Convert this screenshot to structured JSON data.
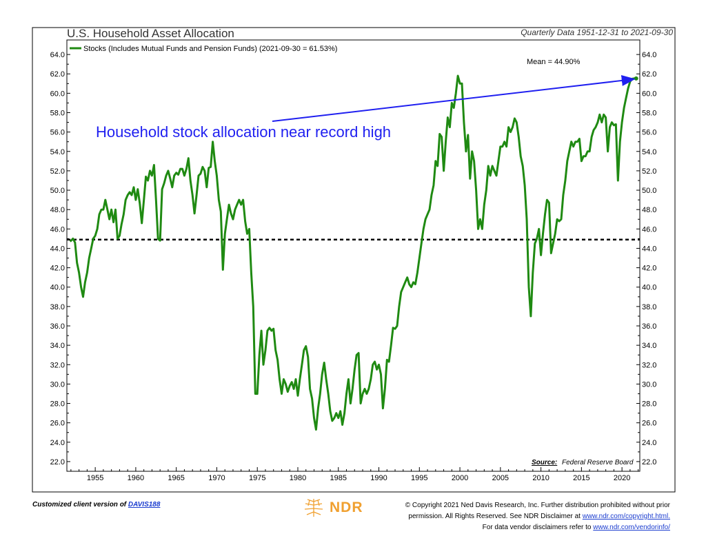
{
  "chart_data": {
    "type": "line",
    "title": "U.S. Household Asset Allocation",
    "subtitle": "Quarterly Data 1951-12-31 to 2021-09-30",
    "series": [
      {
        "name": "Stocks (Includes Mutual Funds and Pension Funds) (2021-09-30 = 61.53%)",
        "color": "#1f8a12",
        "points": [
          [
            1951.9,
            44.7
          ],
          [
            1952.25,
            45.0
          ],
          [
            1952.5,
            44.6
          ],
          [
            1952.75,
            42.5
          ],
          [
            1953.0,
            41.5
          ],
          [
            1953.25,
            40.0
          ],
          [
            1953.5,
            39.0
          ],
          [
            1953.75,
            40.5
          ],
          [
            1954.0,
            41.5
          ],
          [
            1954.25,
            43.0
          ],
          [
            1954.5,
            44.0
          ],
          [
            1954.75,
            45.0
          ],
          [
            1955.0,
            45.3
          ],
          [
            1955.25,
            46.0
          ],
          [
            1955.5,
            47.5
          ],
          [
            1955.75,
            48.0
          ],
          [
            1956.0,
            48.0
          ],
          [
            1956.25,
            49.0
          ],
          [
            1956.5,
            48.0
          ],
          [
            1956.75,
            47.0
          ],
          [
            1957.0,
            48.0
          ],
          [
            1957.25,
            46.7
          ],
          [
            1957.5,
            48.0
          ],
          [
            1957.75,
            45.0
          ],
          [
            1958.0,
            45.3
          ],
          [
            1958.25,
            46.5
          ],
          [
            1958.5,
            47.5
          ],
          [
            1958.75,
            49.0
          ],
          [
            1959.0,
            49.5
          ],
          [
            1959.25,
            49.8
          ],
          [
            1959.5,
            49.5
          ],
          [
            1959.75,
            50.3
          ],
          [
            1960.0,
            49.0
          ],
          [
            1960.25,
            50.1
          ],
          [
            1960.5,
            48.6
          ],
          [
            1960.75,
            46.6
          ],
          [
            1961.0,
            49.0
          ],
          [
            1961.25,
            51.4
          ],
          [
            1961.5,
            51.0
          ],
          [
            1961.75,
            52.0
          ],
          [
            1962.0,
            51.5
          ],
          [
            1962.25,
            52.6
          ],
          [
            1962.5,
            49.0
          ],
          [
            1962.75,
            45.0
          ],
          [
            1963.0,
            44.8
          ],
          [
            1963.25,
            50.1
          ],
          [
            1963.5,
            50.7
          ],
          [
            1963.75,
            51.5
          ],
          [
            1964.0,
            52.0
          ],
          [
            1964.25,
            51.2
          ],
          [
            1964.5,
            50.3
          ],
          [
            1964.75,
            51.5
          ],
          [
            1965.0,
            51.8
          ],
          [
            1965.25,
            51.6
          ],
          [
            1965.5,
            52.2
          ],
          [
            1965.75,
            52.2
          ],
          [
            1966.0,
            51.5
          ],
          [
            1966.25,
            52.2
          ],
          [
            1966.5,
            53.3
          ],
          [
            1966.75,
            51.0
          ],
          [
            1967.0,
            49.5
          ],
          [
            1967.25,
            47.6
          ],
          [
            1967.5,
            49.5
          ],
          [
            1967.75,
            51.5
          ],
          [
            1968.0,
            51.7
          ],
          [
            1968.25,
            52.4
          ],
          [
            1968.5,
            52.0
          ],
          [
            1968.75,
            50.3
          ],
          [
            1969.0,
            52.3
          ],
          [
            1969.25,
            52.4
          ],
          [
            1969.5,
            55.0
          ],
          [
            1969.75,
            53.0
          ],
          [
            1970.0,
            51.5
          ],
          [
            1970.25,
            49.0
          ],
          [
            1970.5,
            47.8
          ],
          [
            1970.75,
            41.8
          ],
          [
            1971.0,
            45.5
          ],
          [
            1971.25,
            47.0
          ],
          [
            1971.5,
            48.5
          ],
          [
            1971.75,
            47.6
          ],
          [
            1972.0,
            47.0
          ],
          [
            1972.25,
            48.0
          ],
          [
            1972.5,
            48.5
          ],
          [
            1972.75,
            49.0
          ],
          [
            1973.0,
            48.5
          ],
          [
            1973.25,
            49.0
          ],
          [
            1973.5,
            46.8
          ],
          [
            1973.75,
            45.5
          ],
          [
            1974.0,
            46.0
          ],
          [
            1974.25,
            41.5
          ],
          [
            1974.5,
            38.0
          ],
          [
            1974.75,
            29.0
          ],
          [
            1975.0,
            29.0
          ],
          [
            1975.25,
            33.0
          ],
          [
            1975.5,
            35.5
          ],
          [
            1975.75,
            32.0
          ],
          [
            1976.0,
            33.5
          ],
          [
            1976.25,
            35.5
          ],
          [
            1976.5,
            35.8
          ],
          [
            1976.75,
            35.5
          ],
          [
            1977.0,
            35.7
          ],
          [
            1977.25,
            33.5
          ],
          [
            1977.5,
            32.5
          ],
          [
            1977.75,
            30.5
          ],
          [
            1978.0,
            29.0
          ],
          [
            1978.25,
            30.5
          ],
          [
            1978.5,
            30.0
          ],
          [
            1978.75,
            29.2
          ],
          [
            1979.0,
            29.8
          ],
          [
            1979.25,
            30.2
          ],
          [
            1979.5,
            29.5
          ],
          [
            1979.75,
            30.5
          ],
          [
            1980.0,
            28.8
          ],
          [
            1980.25,
            30.5
          ],
          [
            1980.5,
            32.0
          ],
          [
            1980.75,
            33.5
          ],
          [
            1981.0,
            33.9
          ],
          [
            1981.25,
            32.8
          ],
          [
            1981.5,
            29.5
          ],
          [
            1981.75,
            28.5
          ],
          [
            1982.0,
            26.5
          ],
          [
            1982.25,
            25.3
          ],
          [
            1982.5,
            27.5
          ],
          [
            1982.75,
            29.0
          ],
          [
            1983.0,
            31.0
          ],
          [
            1983.25,
            32.2
          ],
          [
            1983.5,
            30.5
          ],
          [
            1983.75,
            29.0
          ],
          [
            1984.0,
            27.2
          ],
          [
            1984.25,
            26.2
          ],
          [
            1984.5,
            26.5
          ],
          [
            1984.75,
            27.0
          ],
          [
            1985.0,
            26.5
          ],
          [
            1985.25,
            27.2
          ],
          [
            1985.5,
            25.8
          ],
          [
            1985.75,
            27.0
          ],
          [
            1986.0,
            29.0
          ],
          [
            1986.25,
            30.5
          ],
          [
            1986.5,
            28.0
          ],
          [
            1986.75,
            29.5
          ],
          [
            1987.0,
            31.5
          ],
          [
            1987.25,
            33.0
          ],
          [
            1987.5,
            33.2
          ],
          [
            1987.75,
            28.0
          ],
          [
            1988.0,
            29.0
          ],
          [
            1988.25,
            29.5
          ],
          [
            1988.5,
            29.0
          ],
          [
            1988.75,
            29.5
          ],
          [
            1989.0,
            30.5
          ],
          [
            1989.25,
            32.0
          ],
          [
            1989.5,
            32.3
          ],
          [
            1989.75,
            31.5
          ],
          [
            1990.0,
            32.0
          ],
          [
            1990.25,
            31.0
          ],
          [
            1990.5,
            27.5
          ],
          [
            1990.75,
            29.5
          ],
          [
            1991.0,
            32.5
          ],
          [
            1991.25,
            32.3
          ],
          [
            1991.5,
            34.0
          ],
          [
            1991.75,
            35.8
          ],
          [
            1992.0,
            35.7
          ],
          [
            1992.25,
            36.0
          ],
          [
            1992.5,
            38.0
          ],
          [
            1992.75,
            39.5
          ],
          [
            1993.0,
            40.0
          ],
          [
            1993.25,
            40.5
          ],
          [
            1993.5,
            41.0
          ],
          [
            1993.75,
            40.3
          ],
          [
            1994.0,
            40.0
          ],
          [
            1994.25,
            40.5
          ],
          [
            1994.5,
            40.3
          ],
          [
            1994.75,
            41.5
          ],
          [
            1995.0,
            43.0
          ],
          [
            1995.25,
            44.5
          ],
          [
            1995.5,
            46.0
          ],
          [
            1995.75,
            47.0
          ],
          [
            1996.0,
            47.5
          ],
          [
            1996.25,
            48.0
          ],
          [
            1996.5,
            49.5
          ],
          [
            1996.75,
            50.5
          ],
          [
            1997.0,
            53.0
          ],
          [
            1997.25,
            52.5
          ],
          [
            1997.5,
            55.8
          ],
          [
            1997.75,
            55.5
          ],
          [
            1998.0,
            52.0
          ],
          [
            1998.25,
            55.0
          ],
          [
            1998.5,
            57.5
          ],
          [
            1998.75,
            56.5
          ],
          [
            1999.0,
            59.0
          ],
          [
            1999.25,
            58.5
          ],
          [
            1999.5,
            60.0
          ],
          [
            1999.75,
            61.8
          ],
          [
            2000.0,
            61.0
          ],
          [
            2000.25,
            61.0
          ],
          [
            2000.5,
            57.0
          ],
          [
            2000.75,
            54.0
          ],
          [
            2001.0,
            55.7
          ],
          [
            2001.25,
            51.2
          ],
          [
            2001.5,
            54.0
          ],
          [
            2001.75,
            53.0
          ],
          [
            2002.0,
            50.0
          ],
          [
            2002.25,
            46.0
          ],
          [
            2002.5,
            47.0
          ],
          [
            2002.75,
            46.0
          ],
          [
            2003.0,
            48.5
          ],
          [
            2003.25,
            50.0
          ],
          [
            2003.5,
            52.5
          ],
          [
            2003.75,
            51.5
          ],
          [
            2004.0,
            52.5
          ],
          [
            2004.25,
            52.0
          ],
          [
            2004.5,
            51.5
          ],
          [
            2004.75,
            53.0
          ],
          [
            2005.0,
            54.5
          ],
          [
            2005.25,
            54.5
          ],
          [
            2005.5,
            55.0
          ],
          [
            2005.75,
            54.5
          ],
          [
            2006.0,
            56.5
          ],
          [
            2006.25,
            56.0
          ],
          [
            2006.5,
            56.5
          ],
          [
            2006.75,
            57.4
          ],
          [
            2007.0,
            57.0
          ],
          [
            2007.25,
            55.5
          ],
          [
            2007.5,
            53.5
          ],
          [
            2007.75,
            52.5
          ],
          [
            2008.0,
            50.5
          ],
          [
            2008.25,
            47.0
          ],
          [
            2008.5,
            40.0
          ],
          [
            2008.75,
            37.0
          ],
          [
            2009.0,
            41.5
          ],
          [
            2009.25,
            44.5
          ],
          [
            2009.5,
            45.0
          ],
          [
            2009.75,
            46.0
          ],
          [
            2010.0,
            43.3
          ],
          [
            2010.25,
            45.5
          ],
          [
            2010.5,
            47.5
          ],
          [
            2010.75,
            49.0
          ],
          [
            2011.0,
            48.7
          ],
          [
            2011.25,
            43.5
          ],
          [
            2011.5,
            44.5
          ],
          [
            2011.75,
            45.5
          ],
          [
            2012.0,
            47.0
          ],
          [
            2012.25,
            46.8
          ],
          [
            2012.5,
            47.0
          ],
          [
            2012.75,
            49.5
          ],
          [
            2013.0,
            51.0
          ],
          [
            2013.25,
            53.0
          ],
          [
            2013.5,
            54.0
          ],
          [
            2013.75,
            55.0
          ],
          [
            2014.0,
            54.5
          ],
          [
            2014.25,
            55.0
          ],
          [
            2014.5,
            55.0
          ],
          [
            2014.75,
            55.3
          ],
          [
            2015.0,
            53.0
          ],
          [
            2015.25,
            53.5
          ],
          [
            2015.5,
            53.5
          ],
          [
            2015.75,
            54.0
          ],
          [
            2016.0,
            54.0
          ],
          [
            2016.25,
            55.5
          ],
          [
            2016.5,
            56.2
          ],
          [
            2016.75,
            56.5
          ],
          [
            2017.0,
            57.0
          ],
          [
            2017.25,
            57.8
          ],
          [
            2017.5,
            57.0
          ],
          [
            2017.75,
            57.8
          ],
          [
            2018.0,
            57.5
          ],
          [
            2018.25,
            54.0
          ],
          [
            2018.5,
            56.5
          ],
          [
            2018.75,
            57.0
          ],
          [
            2019.0,
            56.7
          ],
          [
            2019.25,
            56.8
          ],
          [
            2019.5,
            51.0
          ],
          [
            2019.75,
            55.0
          ],
          [
            2020.0,
            57.0
          ],
          [
            2020.25,
            58.5
          ],
          [
            2020.5,
            59.5
          ],
          [
            2020.75,
            60.5
          ],
          [
            2021.0,
            61.2
          ],
          [
            2021.25,
            61.5
          ],
          [
            2021.5,
            61.53
          ],
          [
            2021.75,
            61.53
          ]
        ]
      }
    ],
    "mean_value": 44.9,
    "mean_label": "Mean = 44.90%",
    "annotation": "Household stock allocation near record high",
    "annotation_color": "#1f1ff0",
    "xlim": [
      1951.5,
      2022.2
    ],
    "ylim": [
      21.0,
      65.5
    ],
    "yticks": [
      22.0,
      24.0,
      26.0,
      28.0,
      30.0,
      32.0,
      34.0,
      36.0,
      38.0,
      40.0,
      42.0,
      44.0,
      46.0,
      48.0,
      50.0,
      52.0,
      54.0,
      56.0,
      58.0,
      60.0,
      62.0,
      64.0
    ],
    "xticks": [
      1955,
      1960,
      1965,
      1970,
      1975,
      1980,
      1985,
      1990,
      1995,
      2000,
      2005,
      2010,
      2015,
      2020
    ],
    "source_label": "Source:",
    "source": "Federal Reserve Board",
    "grid": false,
    "legend_position": "top-left"
  },
  "footer": {
    "client_prefix": "Customized client version of ",
    "client_link": "DAVIS188",
    "logo_text": "NDR",
    "copyright_line1": "© Copyright 2021 Ned Davis Research, Inc. Further distribution prohibited without prior",
    "copyright_line2_text": "permission. All Rights Reserved. See NDR Disclaimer at ",
    "copyright_line2_link": "www.ndr.com/copyright.html.",
    "copyright_line3_text": "For data vendor disclaimers refer to ",
    "copyright_line3_link": "www.ndr.com/vendorinfo/"
  }
}
